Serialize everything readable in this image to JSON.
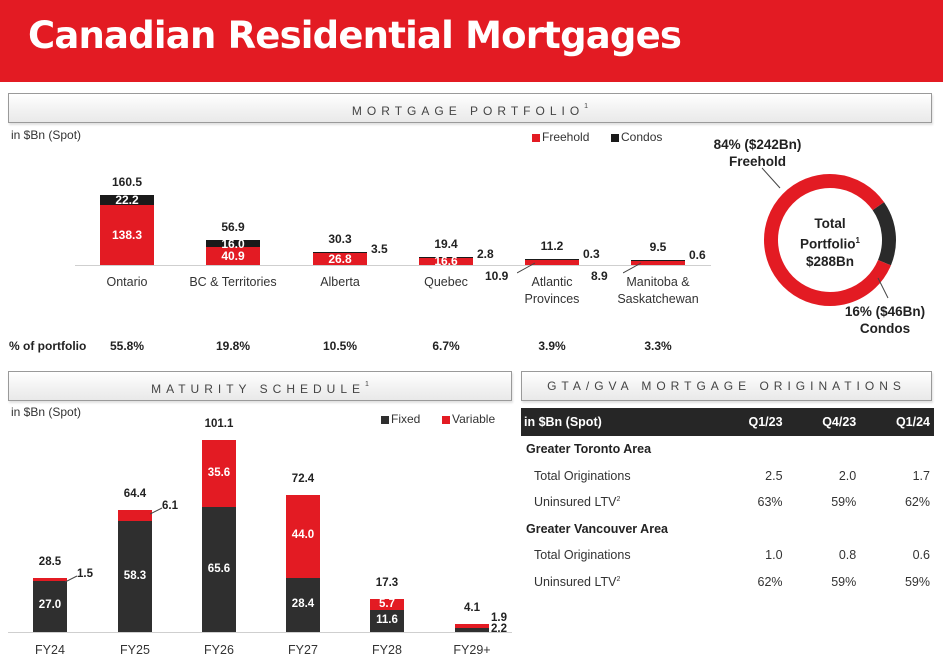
{
  "title": "Canadian Residential Mortgages",
  "mortgage_portfolio": {
    "header": "MORTGAGE PORTFOLIO",
    "header_sup": "1",
    "units": "in $Bn (Spot)",
    "legend": {
      "freehold": "Freehold",
      "condos": "Condos"
    },
    "colors": {
      "freehold": "#e31b23",
      "condos": "#1a1a1a"
    },
    "pct_label": "% of portfolio",
    "regions": [
      {
        "name_line1": "Ontario",
        "name_line2": "",
        "total": "160.5",
        "freehold": "138.3",
        "condos": "22.2",
        "freehold_value": 138.3,
        "condos_value": 22.2,
        "pct": "55.8%"
      },
      {
        "name_line1": "BC & Territories",
        "name_line2": "",
        "total": "56.9",
        "freehold": "40.9",
        "condos": "16.0",
        "freehold_value": 40.9,
        "condos_value": 16.0,
        "pct": "19.8%"
      },
      {
        "name_line1": "Alberta",
        "name_line2": "",
        "total": "30.3",
        "freehold": "26.8",
        "condos": "3.5",
        "freehold_value": 26.8,
        "condos_value": 3.5,
        "pct": "10.5%"
      },
      {
        "name_line1": "Quebec",
        "name_line2": "",
        "total": "19.4",
        "freehold": "16.6",
        "condos": "2.8",
        "freehold_value": 16.6,
        "condos_value": 2.8,
        "pct": "6.7%"
      },
      {
        "name_line1": "Atlantic",
        "name_line2": "Provinces",
        "total": "11.2",
        "freehold": "10.9",
        "condos": "0.3",
        "freehold_value": 10.9,
        "condos_value": 0.3,
        "pct": "3.9%"
      },
      {
        "name_line1": "Manitoba &",
        "name_line2": "Saskatchewan",
        "total": "9.5",
        "freehold": "8.9",
        "condos": "0.6",
        "freehold_value": 8.9,
        "condos_value": 0.6,
        "pct": "3.3%"
      }
    ],
    "donut": {
      "freehold_line1": "84% ($242Bn)",
      "freehold_line2": "Freehold",
      "center_line1": "Total",
      "center_line2": "Portfolio",
      "center_sup": "1",
      "center_line3": "$288Bn",
      "condos_line1": "16% ($46Bn)",
      "condos_line2": "Condos",
      "freehold_share": 84,
      "condos_share": 16
    }
  },
  "maturity_schedule": {
    "header": "MATURITY SCHEDULE",
    "header_sup": "1",
    "units": "in $Bn (Spot)",
    "legend": {
      "fixed": "Fixed",
      "variable": "Variable"
    },
    "colors": {
      "fixed": "#2f2f2f",
      "variable": "#e31b23"
    },
    "years": [
      {
        "label": "FY24",
        "total": "28.5",
        "fixed": "27.0",
        "variable": "1.5",
        "fixed_value": 27.0,
        "variable_value": 1.5
      },
      {
        "label": "FY25",
        "total": "64.4",
        "fixed": "58.3",
        "variable": "6.1",
        "fixed_value": 58.3,
        "variable_value": 6.1
      },
      {
        "label": "FY26",
        "total": "101.1",
        "fixed": "65.6",
        "variable": "35.6",
        "fixed_value": 65.6,
        "variable_value": 35.6
      },
      {
        "label": "FY27",
        "total": "72.4",
        "fixed": "28.4",
        "variable": "44.0",
        "fixed_value": 28.4,
        "variable_value": 44.0
      },
      {
        "label": "FY28",
        "total": "17.3",
        "fixed": "11.6",
        "variable": "5.7",
        "fixed_value": 11.6,
        "variable_value": 5.7
      },
      {
        "label": "FY29+",
        "total": "4.1",
        "fixed": "2.2",
        "variable": "1.9",
        "fixed_value": 2.2,
        "variable_value": 1.9
      }
    ]
  },
  "originations": {
    "header": "GTA/GVA MORTGAGE ORIGINATIONS",
    "columns": [
      "in $Bn (Spot)",
      "Q1/23",
      "Q4/23",
      "Q1/24"
    ],
    "sections": [
      {
        "name": "Greater Toronto Area",
        "rows": [
          {
            "label": "Total Originations",
            "sup": "",
            "values": [
              "2.5",
              "2.0",
              "1.7"
            ]
          },
          {
            "label": "Uninsured LTV",
            "sup": "2",
            "values": [
              "63%",
              "59%",
              "62%"
            ]
          }
        ]
      },
      {
        "name": "Greater Vancouver Area",
        "rows": [
          {
            "label": "Total Originations",
            "sup": "",
            "values": [
              "1.0",
              "0.8",
              "0.6"
            ]
          },
          {
            "label": "Uninsured LTV",
            "sup": "2",
            "values": [
              "62%",
              "59%",
              "59%"
            ]
          }
        ]
      }
    ]
  },
  "chart_data": [
    {
      "type": "bar",
      "stacked": true,
      "title": "MORTGAGE PORTFOLIO",
      "ylabel": "in $Bn (Spot)",
      "categories": [
        "Ontario",
        "BC & Territories",
        "Alberta",
        "Quebec",
        "Atlantic Provinces",
        "Manitoba & Saskatchewan"
      ],
      "series": [
        {
          "name": "Freehold",
          "values": [
            138.3,
            40.9,
            26.8,
            16.6,
            10.9,
            8.9
          ]
        },
        {
          "name": "Condos",
          "values": [
            22.2,
            16.0,
            3.5,
            2.8,
            0.3,
            0.6
          ]
        }
      ],
      "totals": [
        160.5,
        56.9,
        30.3,
        19.4,
        11.2,
        9.5
      ],
      "legend": "top-right",
      "grid": false
    },
    {
      "type": "pie",
      "donut": true,
      "labels": [
        "Freehold",
        "Condos"
      ],
      "values": [
        84,
        16
      ],
      "amounts": [
        242,
        46
      ],
      "center_text": "Total Portfolio $288Bn"
    },
    {
      "type": "bar",
      "stacked": true,
      "title": "MATURITY SCHEDULE",
      "ylabel": "in $Bn (Spot)",
      "categories": [
        "FY24",
        "FY25",
        "FY26",
        "FY27",
        "FY28",
        "FY29+"
      ],
      "series": [
        {
          "name": "Fixed",
          "values": [
            27.0,
            58.3,
            65.6,
            28.4,
            11.6,
            2.2
          ]
        },
        {
          "name": "Variable",
          "values": [
            1.5,
            6.1,
            35.6,
            44.0,
            5.7,
            1.9
          ]
        }
      ],
      "totals": [
        28.5,
        64.4,
        101.1,
        72.4,
        17.3,
        4.1
      ],
      "legend": "top-right",
      "grid": false
    }
  ]
}
